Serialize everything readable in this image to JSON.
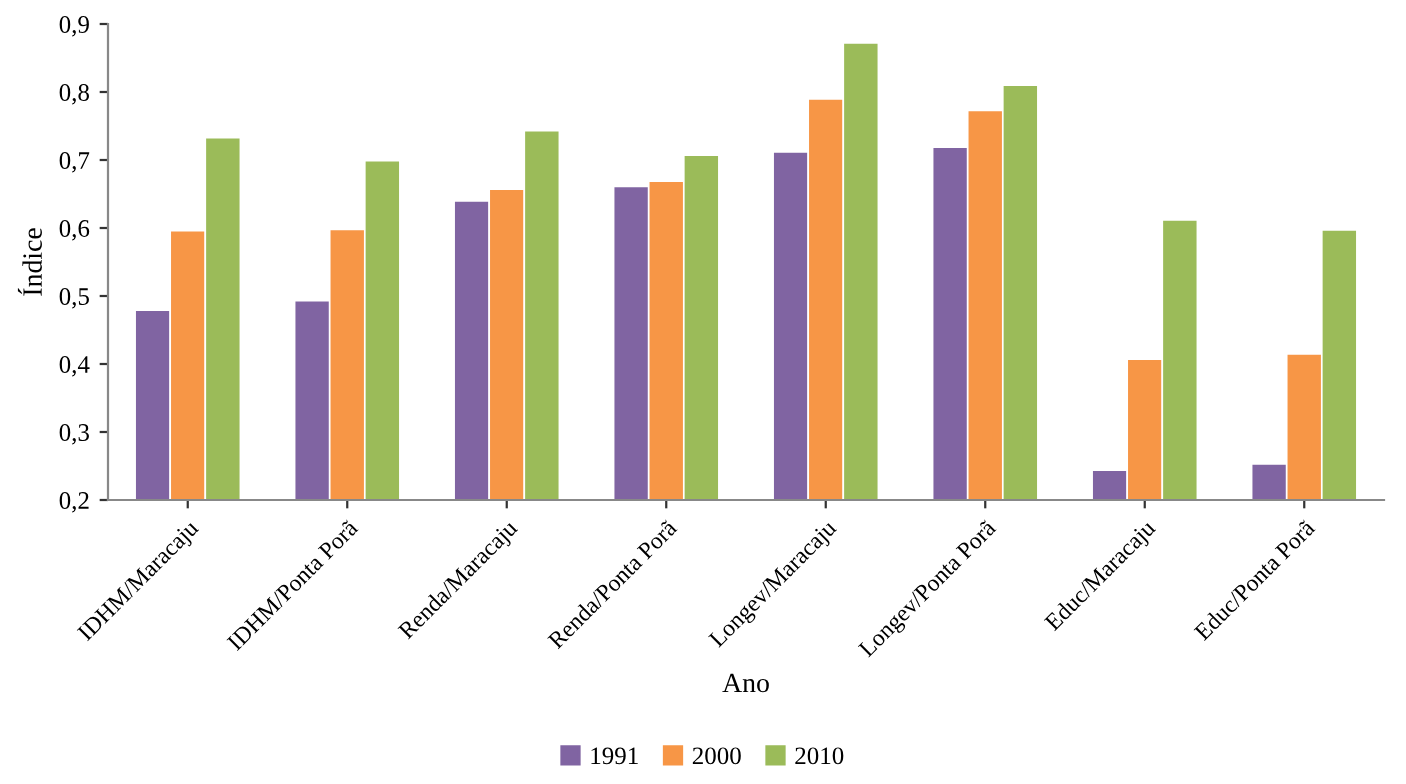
{
  "chart_data": {
    "type": "bar",
    "xlabel": "Ano",
    "ylabel": "Índice",
    "categories": [
      "IDHM/Maracaju",
      "IDHM/Ponta Porã",
      "Renda/Maracaju",
      "Renda/Ponta Porã",
      "Longev/Maracaju",
      "Longev/Ponta Porã",
      "Educ/Maracaju",
      "Educ/Ponta Porã"
    ],
    "series": [
      {
        "name": "1991",
        "color": "#8064a2",
        "values": [
          0.479,
          0.493,
          0.64,
          0.661,
          0.712,
          0.719,
          0.244,
          0.253
        ]
      },
      {
        "name": "2000",
        "color": "#f79646",
        "values": [
          0.596,
          0.598,
          0.657,
          0.669,
          0.79,
          0.773,
          0.407,
          0.415
        ]
      },
      {
        "name": "2010",
        "color": "#9bbb59",
        "values": [
          0.733,
          0.699,
          0.743,
          0.707,
          0.872,
          0.81,
          0.612,
          0.597
        ]
      }
    ],
    "ylim": [
      0.2,
      0.9
    ],
    "yticks": [
      {
        "value": 0.2,
        "label": "0,2"
      },
      {
        "value": 0.3,
        "label": "0,3"
      },
      {
        "value": 0.4,
        "label": "0,4"
      },
      {
        "value": 0.5,
        "label": "0,5"
      },
      {
        "value": 0.6,
        "label": "0,6"
      },
      {
        "value": 0.7,
        "label": "0,7"
      },
      {
        "value": 0.8,
        "label": "0,8"
      },
      {
        "value": 0.9,
        "label": "0,9"
      }
    ],
    "grid": false,
    "legend": "bottom"
  }
}
